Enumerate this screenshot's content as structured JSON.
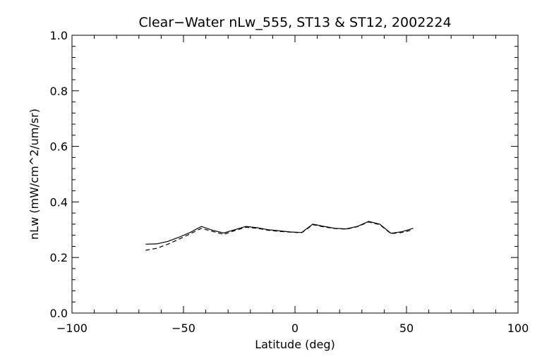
{
  "chart_data": {
    "type": "line",
    "title": "Clear−Water nLw_555, ST13 & ST12, 2002224",
    "xlabel": "Latitude (deg)",
    "ylabel": "nLw (mW/cm^2/um/sr)",
    "xlim": [
      -100,
      100
    ],
    "ylim": [
      0.0,
      1.0
    ],
    "x_ticks": [
      -100,
      -50,
      0,
      50,
      100
    ],
    "x_tick_labels": [
      "−100",
      "−50",
      "0",
      "50",
      "100"
    ],
    "y_ticks": [
      0.0,
      0.2,
      0.4,
      0.6,
      0.8,
      1.0
    ],
    "y_tick_labels": [
      "0.0",
      "0.2",
      "0.4",
      "0.6",
      "0.8",
      "1.0"
    ],
    "grid": false,
    "legend": "none",
    "series": [
      {
        "style": "solid",
        "color": "#000000",
        "x": [
          -67,
          -62,
          -57,
          -52,
          -47,
          -42,
          -37,
          -32,
          -27,
          -22,
          -17,
          -12,
          -7,
          -2,
          3,
          8,
          13,
          18,
          23,
          28,
          33,
          38,
          43,
          48,
          53
        ],
        "y": [
          0.248,
          0.249,
          0.258,
          0.273,
          0.29,
          0.312,
          0.298,
          0.288,
          0.3,
          0.312,
          0.307,
          0.3,
          0.296,
          0.292,
          0.29,
          0.32,
          0.312,
          0.305,
          0.303,
          0.312,
          0.33,
          0.32,
          0.287,
          0.293,
          0.305
        ]
      },
      {
        "style": "dashed",
        "color": "#000000",
        "x": [
          -67,
          -62,
          -57,
          -52,
          -47,
          -42,
          -37,
          -32,
          -27,
          -22,
          -17,
          -12,
          -7,
          -2,
          3,
          8,
          13,
          18,
          23,
          28,
          33,
          38,
          43,
          48,
          53
        ],
        "y": [
          0.226,
          0.233,
          0.248,
          0.266,
          0.285,
          0.305,
          0.294,
          0.283,
          0.297,
          0.309,
          0.305,
          0.298,
          0.294,
          0.291,
          0.289,
          0.318,
          0.31,
          0.304,
          0.302,
          0.311,
          0.328,
          0.318,
          0.286,
          0.29,
          0.3
        ]
      }
    ]
  }
}
